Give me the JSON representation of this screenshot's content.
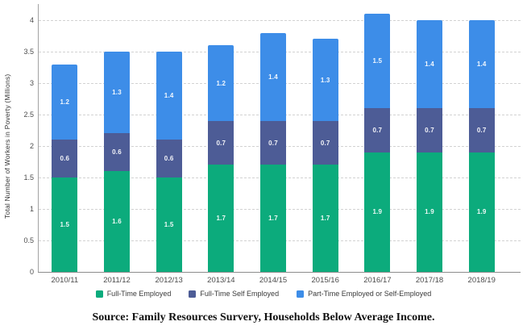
{
  "chart_data": {
    "type": "bar",
    "stacked": true,
    "title": "",
    "xlabel": "",
    "ylabel": "Total Number of Workers in Poverty (Millions)",
    "ylim": [
      0,
      4
    ],
    "yticks": [
      0,
      0.5,
      1,
      1.5,
      2,
      2.5,
      3,
      3.5,
      4
    ],
    "grid": "horizontal-dashed",
    "legend_position": "bottom",
    "categories": [
      "2010/11",
      "2011/12",
      "2012/13",
      "2013/14",
      "2014/15",
      "2015/16",
      "2016/17",
      "2017/18",
      "2018/19"
    ],
    "series": [
      {
        "name": "Full-Time Employed",
        "color": "#0cab7c",
        "values": [
          1.5,
          1.6,
          1.5,
          1.7,
          1.7,
          1.7,
          1.9,
          1.9,
          1.9
        ]
      },
      {
        "name": "Full-Time Self Employed",
        "color": "#4d5c96",
        "values": [
          0.6,
          0.6,
          0.6,
          0.7,
          0.7,
          0.7,
          0.7,
          0.7,
          0.7
        ]
      },
      {
        "name": "Part-Time Employed or Self-Employed",
        "color": "#3d8de8",
        "values": [
          1.2,
          1.3,
          1.4,
          1.2,
          1.4,
          1.3,
          1.5,
          1.4,
          1.4
        ]
      }
    ],
    "totals": [
      3.3,
      3.5,
      3.5,
      3.6,
      3.8,
      3.7,
      4.1,
      4.0,
      4.0
    ]
  },
  "source": {
    "text": "Source: Family Resources Survery, Households Below Average Income."
  }
}
